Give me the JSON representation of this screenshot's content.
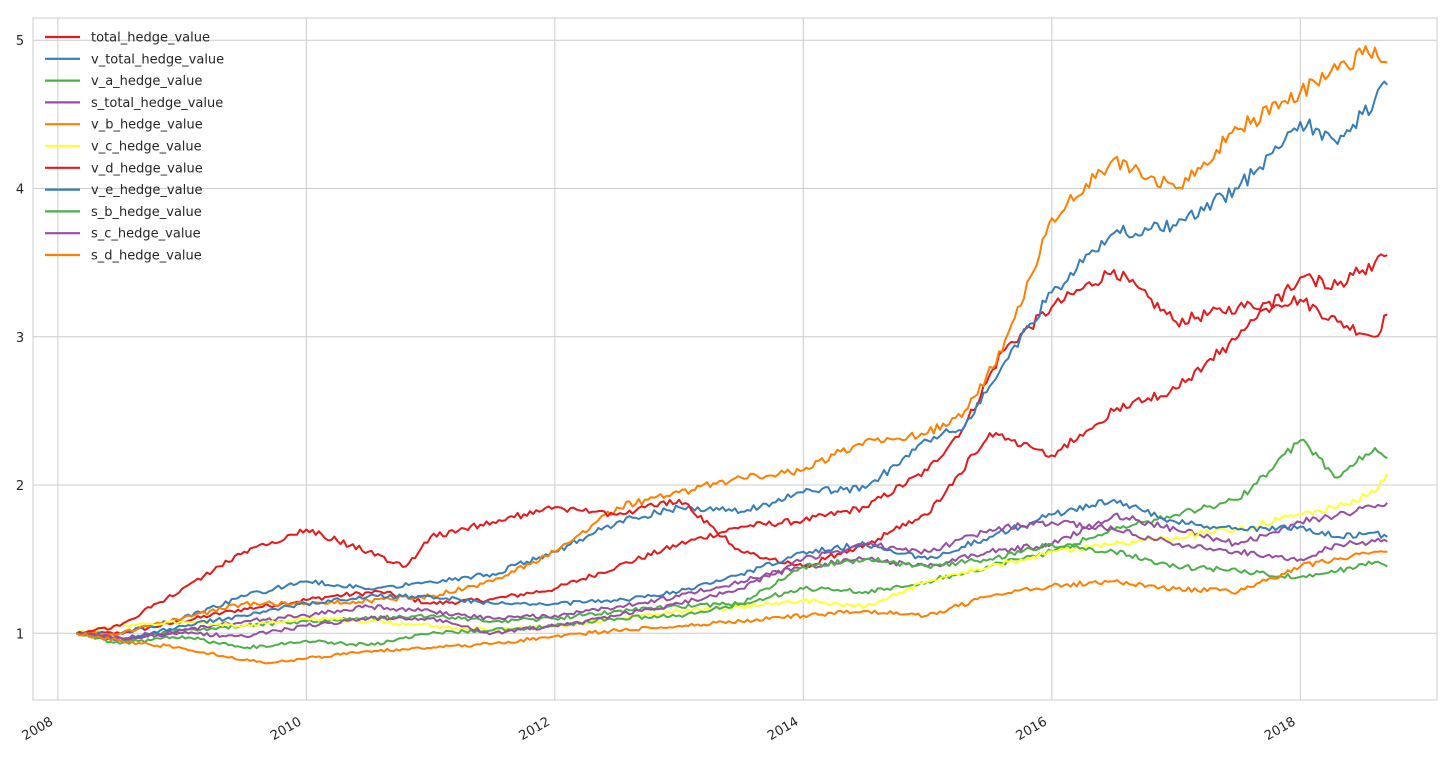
{
  "chart_data": {
    "type": "line",
    "title": "",
    "xlabel": "",
    "ylabel": "",
    "xlim": [
      2007.8,
      2019.1
    ],
    "ylim": [
      0.55,
      5.15
    ],
    "grid": true,
    "legend_position": "upper-left",
    "x_ticks": [
      {
        "value": 2008,
        "label": "2008"
      },
      {
        "value": 2010,
        "label": "2010"
      },
      {
        "value": 2012,
        "label": "2012"
      },
      {
        "value": 2014,
        "label": "2014"
      },
      {
        "value": 2016,
        "label": "2016"
      },
      {
        "value": 2018,
        "label": "2018"
      }
    ],
    "y_ticks": [
      {
        "value": 1,
        "label": "1"
      },
      {
        "value": 2,
        "label": "2"
      },
      {
        "value": 3,
        "label": "3"
      },
      {
        "value": 4,
        "label": "4"
      },
      {
        "value": 5,
        "label": "5"
      }
    ],
    "series": [
      {
        "name": "total_hedge_value",
        "color": "#e41a1c",
        "x": [
          2008.15,
          2008.5,
          2009.0,
          2009.4,
          2009.8,
          2010.2,
          2010.6,
          2011.0,
          2011.5,
          2012.0,
          2012.5,
          2013.0,
          2013.5,
          2014.0,
          2014.5,
          2015.0,
          2015.3,
          2015.6,
          2016.0,
          2016.5,
          2017.0,
          2017.5,
          2018.0,
          2018.3,
          2018.6,
          2018.7
        ],
        "y": [
          1.0,
          1.0,
          1.08,
          1.15,
          1.2,
          1.25,
          1.28,
          1.2,
          1.23,
          1.3,
          1.45,
          1.6,
          1.72,
          1.76,
          1.85,
          2.1,
          2.4,
          2.9,
          3.2,
          3.45,
          3.1,
          3.2,
          3.25,
          3.1,
          3.0,
          3.15
        ]
      },
      {
        "name": "v_total_hedge_value",
        "color": "#377eb8",
        "x": [
          2008.15,
          2008.5,
          2009.0,
          2009.5,
          2010.0,
          2010.5,
          2011.0,
          2011.5,
          2012.0,
          2012.5,
          2013.0,
          2013.5,
          2014.0,
          2014.5,
          2015.0,
          2015.3,
          2015.6,
          2016.0,
          2016.5,
          2017.0,
          2017.5,
          2018.0,
          2018.3,
          2018.6,
          2018.7
        ],
        "y": [
          1.0,
          1.0,
          1.1,
          1.25,
          1.35,
          1.3,
          1.35,
          1.4,
          1.55,
          1.75,
          1.85,
          1.82,
          1.95,
          1.98,
          2.3,
          2.4,
          2.8,
          3.3,
          3.7,
          3.75,
          4.0,
          4.45,
          4.3,
          4.6,
          4.7
        ]
      },
      {
        "name": "v_a_hedge_value",
        "color": "#4daf4a",
        "x": [
          2008.15,
          2008.5,
          2009.0,
          2009.5,
          2010.0,
          2010.5,
          2011.0,
          2011.5,
          2012.0,
          2012.5,
          2013.0,
          2013.5,
          2014.0,
          2014.5,
          2015.0,
          2015.5,
          2016.0,
          2016.5,
          2017.0,
          2017.5,
          2018.0,
          2018.3,
          2018.6,
          2018.7
        ],
        "y": [
          1.0,
          0.95,
          1.02,
          1.05,
          1.08,
          1.1,
          1.12,
          1.08,
          1.1,
          1.15,
          1.18,
          1.2,
          1.3,
          1.28,
          1.35,
          1.45,
          1.55,
          1.7,
          1.8,
          1.9,
          2.3,
          2.05,
          2.25,
          2.18
        ]
      },
      {
        "name": "s_total_hedge_value",
        "color": "#984ea3",
        "x": [
          2008.15,
          2008.5,
          2009.0,
          2009.5,
          2010.0,
          2010.5,
          2011.0,
          2011.5,
          2012.0,
          2012.5,
          2013.0,
          2013.5,
          2014.0,
          2014.5,
          2015.0,
          2015.5,
          2016.0,
          2016.5,
          2017.0,
          2017.5,
          2018.0,
          2018.3,
          2018.6,
          2018.7
        ],
        "y": [
          1.0,
          0.97,
          1.02,
          1.08,
          1.12,
          1.18,
          1.15,
          1.1,
          1.12,
          1.18,
          1.25,
          1.35,
          1.45,
          1.5,
          1.45,
          1.55,
          1.6,
          1.8,
          1.7,
          1.6,
          1.75,
          1.8,
          1.85,
          1.88
        ]
      },
      {
        "name": "v_b_hedge_value",
        "color": "#ff7f00",
        "x": [
          2008.15,
          2008.5,
          2009.0,
          2009.5,
          2010.0,
          2010.5,
          2011.0,
          2011.5,
          2012.0,
          2012.5,
          2013.0,
          2013.5,
          2014.0,
          2014.5,
          2015.0,
          2015.3,
          2015.6,
          2016.0,
          2016.5,
          2017.0,
          2017.5,
          2018.0,
          2018.3,
          2018.6,
          2018.7
        ],
        "y": [
          1.0,
          1.0,
          1.1,
          1.2,
          1.2,
          1.22,
          1.25,
          1.35,
          1.55,
          1.85,
          1.95,
          2.05,
          2.1,
          2.3,
          2.35,
          2.5,
          2.9,
          3.8,
          4.2,
          4.0,
          4.4,
          4.65,
          4.8,
          4.95,
          4.85
        ]
      },
      {
        "name": "v_c_hedge_value",
        "color": "#ffff33",
        "x": [
          2008.15,
          2008.5,
          2009.0,
          2009.5,
          2010.0,
          2010.5,
          2011.0,
          2011.5,
          2012.0,
          2012.5,
          2013.0,
          2013.5,
          2014.0,
          2014.5,
          2015.0,
          2015.5,
          2016.0,
          2016.5,
          2017.0,
          2017.5,
          2018.0,
          2018.3,
          2018.6,
          2018.7
        ],
        "y": [
          1.0,
          1.05,
          1.08,
          1.05,
          1.1,
          1.08,
          1.05,
          1.02,
          1.05,
          1.1,
          1.15,
          1.18,
          1.22,
          1.18,
          1.35,
          1.45,
          1.55,
          1.6,
          1.65,
          1.7,
          1.8,
          1.85,
          1.95,
          2.08
        ]
      },
      {
        "name": "v_d_hedge_value",
        "color": "#e41a1c",
        "x": [
          2008.15,
          2008.5,
          2009.0,
          2009.5,
          2010.0,
          2010.5,
          2010.8,
          2011.0,
          2011.5,
          2012.0,
          2012.5,
          2013.0,
          2013.5,
          2014.0,
          2014.5,
          2015.0,
          2015.5,
          2016.0,
          2016.5,
          2017.0,
          2017.5,
          2018.0,
          2018.3,
          2018.6,
          2018.7
        ],
        "y": [
          1.0,
          1.05,
          1.3,
          1.55,
          1.7,
          1.55,
          1.45,
          1.65,
          1.75,
          1.85,
          1.8,
          1.9,
          1.55,
          1.45,
          1.6,
          1.8,
          2.35,
          2.2,
          2.5,
          2.65,
          3.0,
          3.4,
          3.35,
          3.5,
          3.55
        ]
      },
      {
        "name": "v_e_hedge_value",
        "color": "#377eb8",
        "x": [
          2008.15,
          2008.5,
          2009.0,
          2009.5,
          2010.0,
          2010.5,
          2011.0,
          2011.5,
          2012.0,
          2012.5,
          2013.0,
          2013.5,
          2014.0,
          2014.5,
          2015.0,
          2015.5,
          2016.0,
          2016.5,
          2017.0,
          2017.5,
          2018.0,
          2018.3,
          2018.6,
          2018.7
        ],
        "y": [
          1.0,
          0.95,
          1.05,
          1.12,
          1.2,
          1.25,
          1.25,
          1.2,
          1.2,
          1.22,
          1.28,
          1.4,
          1.55,
          1.6,
          1.5,
          1.65,
          1.8,
          1.9,
          1.75,
          1.7,
          1.72,
          1.65,
          1.68,
          1.65
        ]
      },
      {
        "name": "s_b_hedge_value",
        "color": "#4daf4a",
        "x": [
          2008.15,
          2008.5,
          2009.0,
          2009.5,
          2010.0,
          2010.5,
          2011.0,
          2011.5,
          2012.0,
          2012.5,
          2013.0,
          2013.5,
          2014.0,
          2014.5,
          2015.0,
          2015.5,
          2016.0,
          2016.5,
          2017.0,
          2017.5,
          2018.0,
          2018.3,
          2018.6,
          2018.7
        ],
        "y": [
          1.0,
          0.93,
          0.98,
          0.9,
          0.95,
          0.92,
          1.0,
          1.02,
          1.05,
          1.1,
          1.12,
          1.2,
          1.45,
          1.5,
          1.45,
          1.5,
          1.6,
          1.55,
          1.45,
          1.42,
          1.38,
          1.42,
          1.48,
          1.45
        ]
      },
      {
        "name": "s_c_hedge_value",
        "color": "#984ea3",
        "x": [
          2008.15,
          2008.5,
          2009.0,
          2009.5,
          2010.0,
          2010.5,
          2011.0,
          2011.5,
          2012.0,
          2012.5,
          2013.0,
          2013.5,
          2014.0,
          2014.5,
          2015.0,
          2015.5,
          2016.0,
          2016.5,
          2017.0,
          2017.5,
          2018.0,
          2018.3,
          2018.6,
          2018.7
        ],
        "y": [
          1.0,
          0.97,
          1.0,
          0.98,
          1.05,
          1.1,
          1.1,
          1.0,
          1.05,
          1.12,
          1.2,
          1.3,
          1.5,
          1.6,
          1.55,
          1.7,
          1.75,
          1.7,
          1.6,
          1.55,
          1.5,
          1.6,
          1.62,
          1.62
        ]
      },
      {
        "name": "s_d_hedge_value",
        "color": "#ff7f00",
        "x": [
          2008.15,
          2008.5,
          2009.0,
          2009.5,
          2009.7,
          2010.0,
          2010.5,
          2011.0,
          2011.5,
          2012.0,
          2012.5,
          2013.0,
          2013.5,
          2014.0,
          2014.5,
          2015.0,
          2015.5,
          2016.0,
          2016.5,
          2017.0,
          2017.5,
          2018.0,
          2018.3,
          2018.6,
          2018.7
        ],
        "y": [
          1.0,
          0.95,
          0.9,
          0.82,
          0.8,
          0.83,
          0.88,
          0.9,
          0.93,
          0.98,
          1.02,
          1.05,
          1.08,
          1.12,
          1.15,
          1.12,
          1.25,
          1.32,
          1.35,
          1.3,
          1.28,
          1.45,
          1.5,
          1.55,
          1.55
        ]
      }
    ]
  }
}
